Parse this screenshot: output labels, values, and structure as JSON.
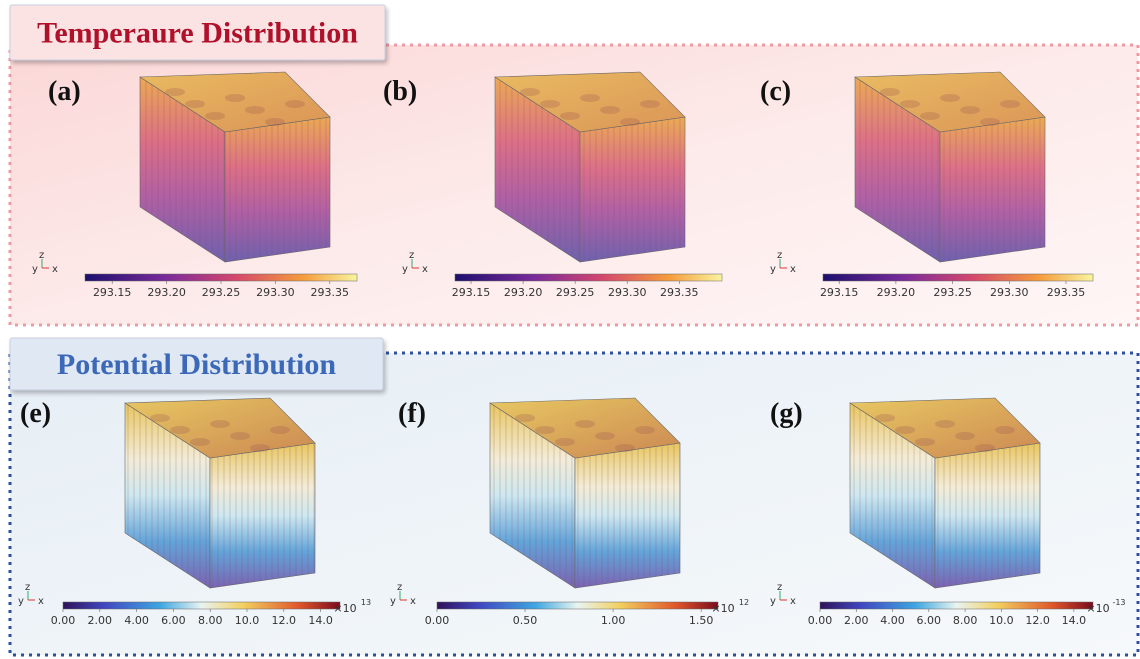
{
  "sections": [
    {
      "title": "Temperaure Distribution",
      "panels": [
        {
          "label": "(a)",
          "colorbar": {
            "ticks": [
              "293.15",
              "293.20",
              "293.25",
              "293.30",
              "293.35"
            ]
          }
        },
        {
          "label": "(b)",
          "colorbar": {
            "ticks": [
              "293.15",
              "293.20",
              "293.25",
              "293.30",
              "293.35"
            ]
          }
        },
        {
          "label": "(c)",
          "colorbar": {
            "ticks": [
              "293.15",
              "293.20",
              "293.25",
              "293.30",
              "293.35"
            ]
          }
        }
      ]
    },
    {
      "title": "Potential Distribution",
      "panels": [
        {
          "label": "(e)",
          "colorbar": {
            "ticks": [
              "0.00",
              "2.00",
              "4.00",
              "6.00",
              "8.00",
              "10.0",
              "12.0",
              "14.0"
            ],
            "multiplier": "×10",
            "exponent": "13"
          }
        },
        {
          "label": "(f)",
          "colorbar": {
            "ticks": [
              "0.00",
              "0.50",
              "1.00",
              "1.50"
            ],
            "multiplier": "×10",
            "exponent": "12"
          }
        },
        {
          "label": "(g)",
          "colorbar": {
            "ticks": [
              "0.00",
              "2.00",
              "4.00",
              "6.00",
              "8.00",
              "10.0",
              "12.0",
              "14.0"
            ],
            "multiplier": "×10",
            "exponent": "-13"
          }
        }
      ]
    }
  ],
  "triad": [
    "y",
    "z",
    "x"
  ]
}
